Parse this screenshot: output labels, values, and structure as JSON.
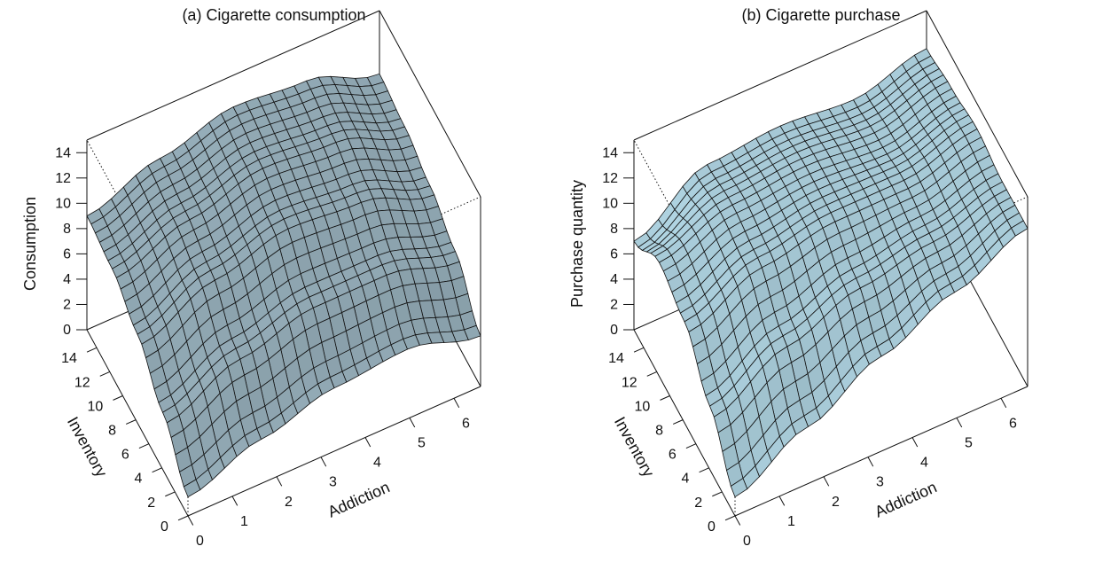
{
  "chart_data": [
    {
      "type": "surface3d",
      "title": "(a) Cigarette consumption",
      "xlabel": "Addiction",
      "ylabel": "Inventory",
      "zlabel": "Consumption",
      "xlim": [
        0,
        6.6
      ],
      "ylim": [
        0,
        15.5
      ],
      "zlim": [
        0,
        15
      ],
      "xticks": [
        0,
        1,
        2,
        3,
        4,
        5,
        6
      ],
      "yticks": [
        0,
        2,
        4,
        6,
        8,
        10,
        12,
        14
      ],
      "zticks": [
        0,
        2,
        4,
        6,
        8,
        10,
        12,
        14
      ],
      "surface_color": "#9ab3bf",
      "surface": {
        "x": [
          0,
          1.65,
          3.3,
          4.95,
          6.6
        ],
        "y": [
          0,
          3.875,
          7.75,
          11.625,
          15.5
        ],
        "z": [
          [
            1.5,
            3.5,
            5.0,
            5.5,
            4.0
          ],
          [
            4.5,
            7.0,
            8.5,
            8.5,
            7.0
          ],
          [
            7.0,
            9.5,
            11.0,
            10.5,
            8.5
          ],
          [
            8.5,
            10.5,
            12.0,
            11.5,
            9.5
          ],
          [
            9.0,
            11.0,
            12.5,
            12.0,
            10.0
          ]
        ]
      }
    },
    {
      "type": "surface3d",
      "title": "(b) Cigarette purchase",
      "xlabel": "Addiction",
      "ylabel": "Inventory",
      "zlabel": "Purchase quantity",
      "xlim": [
        0,
        6.6
      ],
      "ylim": [
        0,
        15.5
      ],
      "zlim": [
        0,
        15
      ],
      "xticks": [
        0,
        1,
        2,
        3,
        4,
        5,
        6
      ],
      "yticks": [
        0,
        2,
        4,
        6,
        8,
        10,
        12,
        14
      ],
      "zticks": [
        0,
        2,
        4,
        6,
        8,
        10,
        12,
        14
      ],
      "surface_color": "#aed2e0",
      "surface": {
        "x": [
          0,
          1.65,
          3.3,
          4.95,
          6.6
        ],
        "y": [
          0,
          3.875,
          7.75,
          11.625,
          15.5
        ],
        "z": [
          [
            1.5,
            4.5,
            7.5,
            10.0,
            12.5
          ],
          [
            5.0,
            8.0,
            10.0,
            11.0,
            12.5
          ],
          [
            8.0,
            10.5,
            11.5,
            11.5,
            13.0
          ],
          [
            9.0,
            11.0,
            11.5,
            11.0,
            12.5
          ],
          [
            7.0,
            10.5,
            11.0,
            10.5,
            12.0
          ]
        ]
      }
    }
  ]
}
